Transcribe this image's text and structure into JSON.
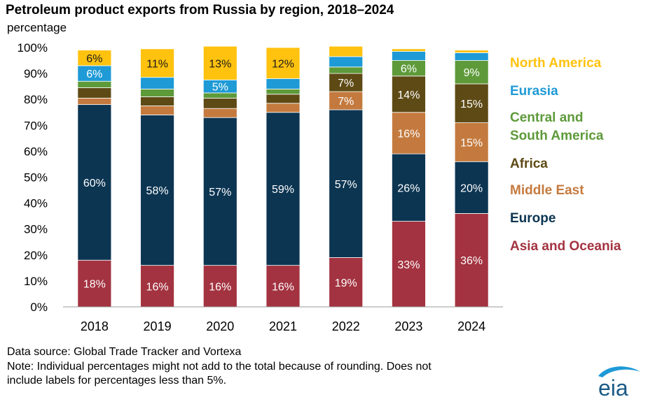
{
  "chart_data": {
    "type": "bar",
    "stacked": true,
    "title": "Petroleum product exports from Russia by region, 2018–2024",
    "ylabel": "percentage",
    "ylim": [
      0,
      100
    ],
    "y_ticks": [
      "0%",
      "10%",
      "20%",
      "30%",
      "40%",
      "50%",
      "60%",
      "70%",
      "80%",
      "90%",
      "100%"
    ],
    "categories": [
      "2018",
      "2019",
      "2020",
      "2021",
      "2022",
      "2023",
      "2024"
    ],
    "legend_position": "right",
    "series": [
      {
        "name": "Asia and Oceania",
        "color": "#a33340",
        "values": [
          18,
          16,
          16,
          16,
          19,
          33,
          36
        ],
        "labels": [
          "18%",
          "16%",
          "16%",
          "16%",
          "19%",
          "33%",
          "36%"
        ]
      },
      {
        "name": "Europe",
        "color": "#0c3552",
        "values": [
          60,
          58,
          57,
          59,
          57,
          26,
          20
        ],
        "labels": [
          "60%",
          "58%",
          "57%",
          "59%",
          "57%",
          "26%",
          "20%"
        ]
      },
      {
        "name": "Middle East",
        "color": "#c47a3e",
        "values": [
          2.5,
          3.5,
          3.5,
          3.5,
          7,
          16,
          15
        ],
        "labels": [
          "",
          "",
          "",
          "",
          "7%",
          "16%",
          "15%"
        ]
      },
      {
        "name": "Africa",
        "color": "#5e4a15",
        "values": [
          4,
          3.5,
          4,
          3.5,
          7,
          14,
          15
        ],
        "labels": [
          "",
          "",
          "",
          "",
          "7%",
          "14%",
          "15%"
        ]
      },
      {
        "name": "Central and\nSouth America",
        "color": "#5e9a3a",
        "values": [
          2.5,
          3,
          2,
          2,
          2.5,
          6,
          9
        ],
        "labels": [
          "",
          "",
          "",
          "",
          "",
          "6%",
          "9%"
        ]
      },
      {
        "name": "Eurasia",
        "color": "#1e9ad6",
        "values": [
          6,
          4.5,
          5,
          4,
          4,
          3.5,
          3
        ],
        "labels": [
          "6%",
          "",
          "5%",
          "",
          "",
          "",
          ""
        ]
      },
      {
        "name": "North America",
        "color": "#ffc20e",
        "values": [
          6,
          11,
          13,
          12,
          4,
          1,
          1
        ],
        "labels": [
          "6%",
          "11%",
          "13%",
          "12%",
          "",
          "",
          ""
        ]
      }
    ]
  },
  "footer": {
    "source": "Data source: Global Trade Tracker and Vortexa",
    "note_line1": "Note: Individual percentages might not add to the total because of rounding. Does not",
    "note_line2": "include labels for percentages less than 5%."
  },
  "logo": {
    "text": "eia",
    "color": "#1a5a87"
  }
}
